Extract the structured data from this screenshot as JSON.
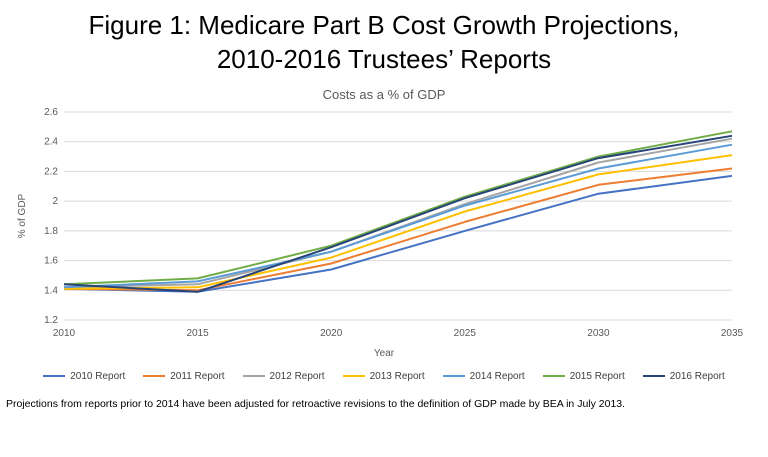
{
  "figure": {
    "title_line1": "Figure 1:  Medicare Part B Cost Growth Projections,",
    "title_line2": "2010-2016 Trustees’ Reports",
    "footnote": "Projections from reports prior to 2014 have been adjusted for retroactive revisions to the definition of GDP made by BEA in July 2013."
  },
  "chart_data": {
    "type": "line",
    "title": "Costs as a % of GDP",
    "xlabel": "Year",
    "ylabel": "% of GDP",
    "x": [
      2010,
      2015,
      2020,
      2025,
      2030,
      2035
    ],
    "ylim": [
      1.2,
      2.6
    ],
    "ytick_step": 0.2,
    "grid": true,
    "legend_position": "bottom",
    "series": [
      {
        "name": "2010 Report",
        "color": "#4472C4",
        "values": [
          1.41,
          1.39,
          1.54,
          1.8,
          2.05,
          2.17
        ]
      },
      {
        "name": "2011 Report",
        "color": "#ED7D31",
        "values": [
          1.41,
          1.4,
          1.58,
          1.86,
          2.11,
          2.22
        ]
      },
      {
        "name": "2012 Report",
        "color": "#A5A5A5",
        "values": [
          1.42,
          1.44,
          1.66,
          1.98,
          2.26,
          2.42
        ]
      },
      {
        "name": "2013 Report",
        "color": "#FFC000",
        "values": [
          1.41,
          1.42,
          1.62,
          1.93,
          2.18,
          2.31
        ]
      },
      {
        "name": "2014 Report",
        "color": "#5B9BD5",
        "values": [
          1.42,
          1.46,
          1.66,
          1.97,
          2.22,
          2.38
        ]
      },
      {
        "name": "2015 Report",
        "color": "#70AD47",
        "values": [
          1.44,
          1.48,
          1.7,
          2.03,
          2.3,
          2.47
        ]
      },
      {
        "name": "2016 Report",
        "color": "#264478",
        "values": [
          1.44,
          1.39,
          1.69,
          2.02,
          2.29,
          2.44
        ]
      }
    ]
  }
}
